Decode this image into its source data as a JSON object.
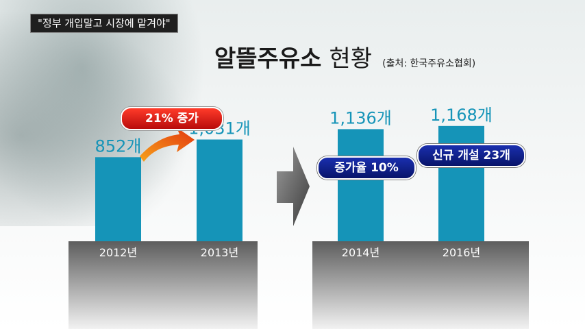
{
  "caption": "\"정부 개입말고 시장에 맡겨야\"",
  "title": {
    "main": "알뜰주유소",
    "sub": "현황",
    "source": "(출처: 한국주유소협회)"
  },
  "annotations": {
    "increase": "21% 증가",
    "growth_rate": "증가율 10%",
    "new_openings": "신규 개설 23개"
  },
  "colors": {
    "bar": "#1594b8",
    "base": "#6f6f6f",
    "label": "#1594b8"
  },
  "chart_data": {
    "type": "bar",
    "categories": [
      "2012년",
      "2013년",
      "2014년",
      "2016년"
    ],
    "values": [
      852,
      1031,
      1136,
      1168
    ],
    "value_labels": [
      "852개",
      "1,031개",
      "1,136개",
      "1,168개"
    ],
    "ylim": [
      0,
      1250
    ]
  }
}
